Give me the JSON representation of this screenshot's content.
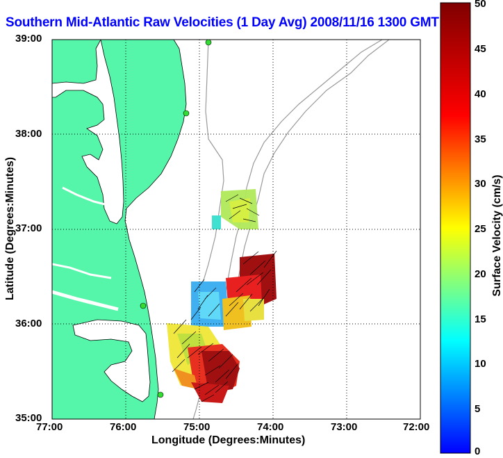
{
  "title": "Southern Mid-Atlantic Raw Velocities (1 Day Avg) 2008/11/16 1300 GMT",
  "axes": {
    "xlabel": "Longitude (Degrees:Minutes)",
    "ylabel": "Latitude (Degrees:Minutes)",
    "x_ticks": [
      "77:00",
      "76:00",
      "75:00",
      "74:00",
      "73:00",
      "72:00"
    ],
    "y_ticks": [
      "39:00",
      "38:00",
      "37:00",
      "36:00",
      "35:00"
    ],
    "x_range": [
      -77,
      -72
    ],
    "y_range": [
      35,
      39
    ],
    "grid": "dotted"
  },
  "colorbar": {
    "label": "Surface Velocity (cm/s)",
    "ticks": [
      "50",
      "45",
      "40",
      "35",
      "30",
      "25",
      "20",
      "15",
      "10",
      "5",
      "0"
    ],
    "range": [
      0,
      50
    ],
    "colormap": "jet"
  },
  "colors": {
    "land": "#55f5aa",
    "water": "#ffffff",
    "coastline": "#000000",
    "bathymetry": "#999999",
    "station": "#33dd33",
    "title": "#0000ff"
  },
  "icons": {
    "station": "green-dot-icon"
  }
}
